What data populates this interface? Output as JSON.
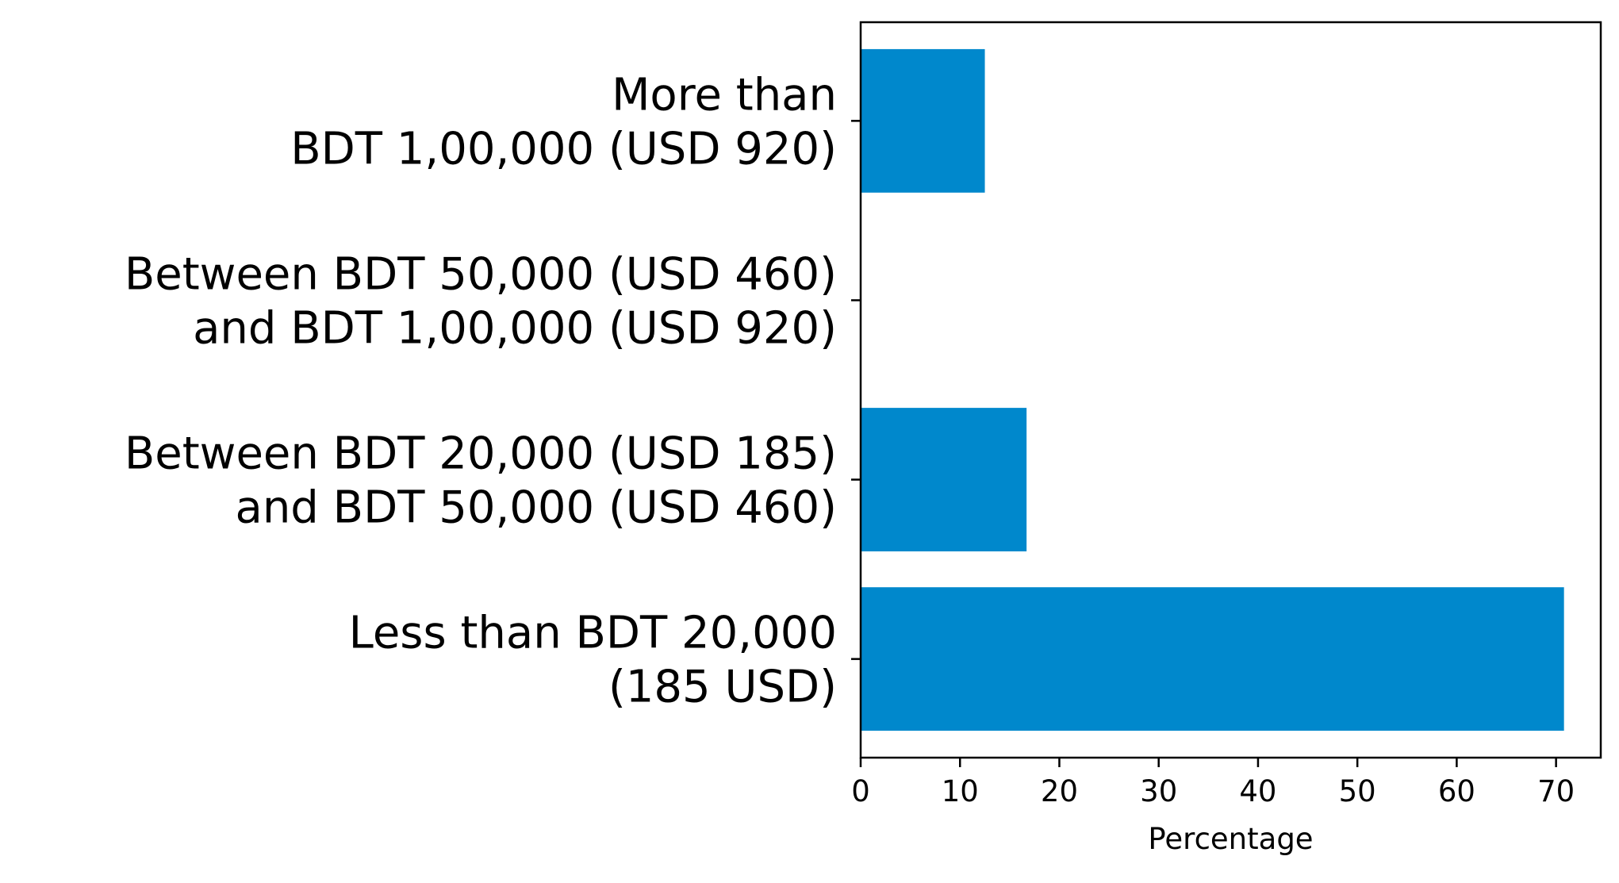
{
  "chart_data": {
    "type": "bar",
    "orientation": "horizontal",
    "title": "",
    "xlabel": "Percentage",
    "ylabel": "",
    "xlim": [
      0,
      74.5
    ],
    "xticks": [
      0,
      10,
      20,
      30,
      40,
      50,
      60,
      70
    ],
    "grid": false,
    "bar_color": "#0088cc",
    "categories": [
      [
        "Less than BDT 20,000",
        "(185 USD)"
      ],
      [
        "Between BDT 20,000 (USD 185)",
        "and BDT 50,000 (USD 460)"
      ],
      [
        "Between BDT 50,000 (USD 460)",
        "and BDT 1,00,000 (USD 920)"
      ],
      [
        "More than",
        "BDT 1,00,000 (USD 920)"
      ]
    ],
    "values": [
      70.8,
      16.7,
      0,
      12.5
    ]
  }
}
